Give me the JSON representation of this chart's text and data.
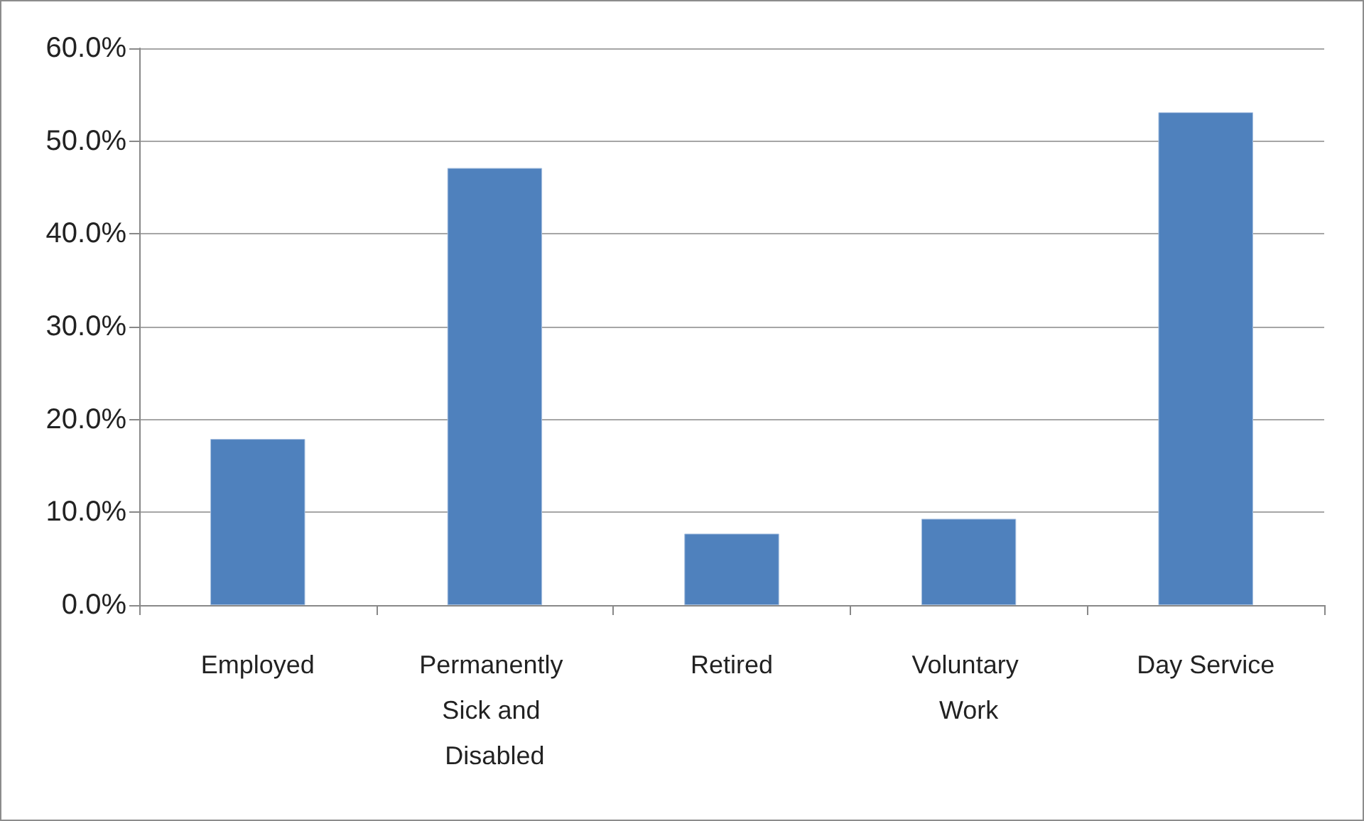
{
  "chart_data": {
    "type": "bar",
    "categories": [
      "Employed",
      "Permanently Sick and Disabled",
      "Retired",
      "Voluntary Work",
      "Day Service"
    ],
    "values": [
      17.9,
      47.1,
      7.7,
      9.3,
      53.1
    ],
    "color": "#4f81bd",
    "ylim": [
      0,
      60
    ],
    "yticks": [
      {
        "value": 0,
        "label": "0.0%"
      },
      {
        "value": 10,
        "label": "10.0%"
      },
      {
        "value": 20,
        "label": "20.0%"
      },
      {
        "value": 30,
        "label": "30.0%"
      },
      {
        "value": 40,
        "label": "40.0%"
      },
      {
        "value": 50,
        "label": "50.0%"
      },
      {
        "value": 60,
        "label": "60.0%"
      }
    ],
    "grid": "y"
  }
}
